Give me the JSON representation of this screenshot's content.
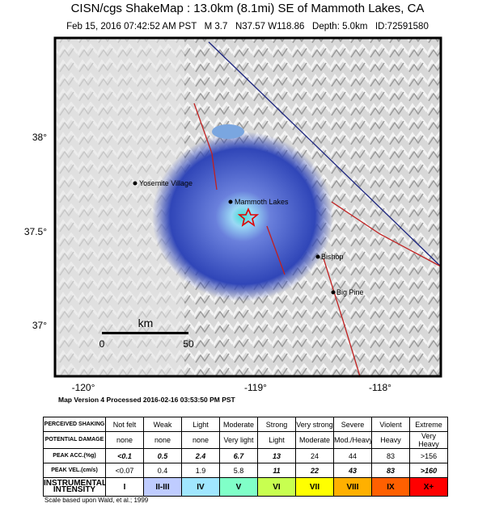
{
  "header": {
    "title": "CISN/cgs ShakeMap : 13.0km (8.1mi) SE of Mammoth Lakes, CA",
    "subtitle": "Feb 15, 2016 07:42:52 AM PST   M 3.7   N37.57 W118.86   Depth: 5.0km   ID:72591580"
  },
  "map": {
    "lat_labels": [
      "38°",
      "37.5°",
      "37°"
    ],
    "lon_labels": [
      "-120°",
      "-119°",
      "-118°"
    ],
    "places": [
      "Yosemite Village",
      "Mammoth Lakes",
      "Bishop",
      "Big Pine"
    ],
    "scale": {
      "unit": "km",
      "start": "0",
      "end": "50"
    },
    "version": "Map Version 4 Processed 2016-02-16 03:53:50 PM PST"
  },
  "table": {
    "rows": [
      {
        "label": "PERCEIVED SHAKING",
        "cells": [
          "Not felt",
          "Weak",
          "Light",
          "Moderate",
          "Strong",
          "Very strong",
          "Severe",
          "Violent",
          "Extreme"
        ]
      },
      {
        "label": "POTENTIAL DAMAGE",
        "cells": [
          "none",
          "none",
          "none",
          "Very light",
          "Light",
          "Moderate",
          "Mod./Heavy",
          "Heavy",
          "Very Heavy"
        ]
      },
      {
        "label": "PEAK ACC.(%g)",
        "cells": [
          "<0.1",
          "0.5",
          "2.4",
          "6.7",
          "13",
          "24",
          "44",
          "83",
          ">156"
        ]
      },
      {
        "label": "PEAK VEL.(cm/s)",
        "cells": [
          "<0.07",
          "0.4",
          "1.9",
          "5.8",
          "11",
          "22",
          "43",
          "83",
          ">160"
        ]
      },
      {
        "label": "INSTRUMENTAL INTENSITY",
        "cells": [
          "I",
          "II-III",
          "IV",
          "V",
          "VI",
          "VII",
          "VIII",
          "IX",
          "X+"
        ]
      }
    ],
    "footnote": "Scale based upon Wald, et al.; 1999"
  }
}
